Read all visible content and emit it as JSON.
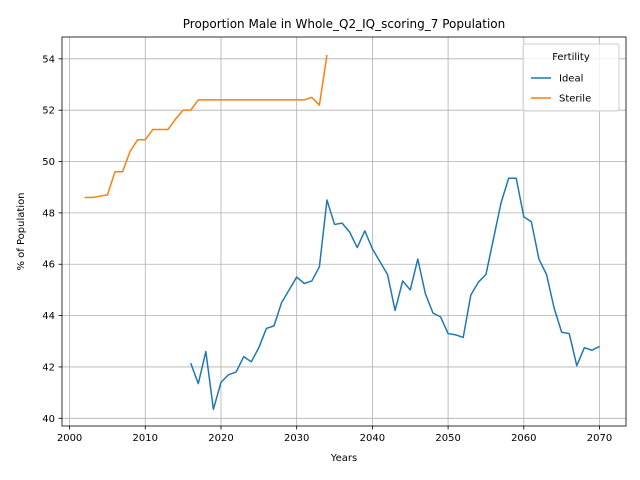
{
  "chart_data": {
    "type": "line",
    "title": "Proportion Male in Whole_Q2_IQ_scoring_7 Population",
    "xlabel": "Years",
    "ylabel": "% of Population",
    "xlim": [
      1999,
      2073.5
    ],
    "ylim": [
      39.7,
      54.85
    ],
    "xticks": [
      2000,
      2010,
      2020,
      2030,
      2040,
      2050,
      2060,
      2070
    ],
    "yticks": [
      40,
      42,
      44,
      46,
      48,
      50,
      52,
      54
    ],
    "grid": true,
    "legend": {
      "title": "Fertility",
      "placement": "top-right"
    },
    "series": [
      {
        "name": "Ideal",
        "color": "#1f77b4",
        "x": [
          2016,
          2017,
          2018,
          2019,
          2020,
          2021,
          2022,
          2023,
          2024,
          2025,
          2026,
          2027,
          2028,
          2029,
          2030,
          2031,
          2032,
          2033,
          2034,
          2035,
          2036,
          2037,
          2038,
          2039,
          2040,
          2041,
          2042,
          2043,
          2044,
          2045,
          2046,
          2047,
          2048,
          2049,
          2050,
          2051,
          2052,
          2053,
          2054,
          2055,
          2056,
          2057,
          2058,
          2059,
          2060,
          2061,
          2062,
          2063,
          2064,
          2065,
          2066,
          2067,
          2068,
          2069,
          2070
        ],
        "y": [
          42.15,
          41.35,
          42.6,
          40.35,
          41.4,
          41.7,
          41.8,
          42.4,
          42.2,
          42.75,
          43.5,
          43.6,
          44.5,
          45.0,
          45.5,
          45.25,
          45.35,
          45.9,
          48.5,
          47.55,
          47.6,
          47.25,
          46.65,
          47.3,
          46.6,
          46.1,
          45.6,
          44.2,
          45.35,
          45.0,
          46.2,
          44.85,
          44.1,
          43.95,
          43.3,
          43.25,
          43.15,
          44.8,
          45.3,
          45.6,
          47.0,
          48.4,
          49.35,
          49.35,
          47.85,
          47.65,
          46.2,
          45.6,
          44.3,
          43.35,
          43.3,
          42.05,
          42.75,
          42.65,
          42.8
        ]
      },
      {
        "name": "Sterile",
        "color": "#ff7f0e",
        "x": [
          2002,
          2003,
          2004,
          2005,
          2006,
          2007,
          2008,
          2009,
          2010,
          2011,
          2012,
          2013,
          2014,
          2015,
          2016,
          2017,
          2018,
          2019,
          2020,
          2021,
          2022,
          2023,
          2024,
          2025,
          2026,
          2027,
          2028,
          2029,
          2030,
          2031,
          2032,
          2033,
          2034
        ],
        "y": [
          48.6,
          48.6,
          48.65,
          48.7,
          49.6,
          49.6,
          50.4,
          50.85,
          50.85,
          51.25,
          51.25,
          51.25,
          51.65,
          52.0,
          52.0,
          52.4,
          52.4,
          52.4,
          52.4,
          52.4,
          52.4,
          52.4,
          52.4,
          52.4,
          52.4,
          52.4,
          52.4,
          52.4,
          52.4,
          52.4,
          52.5,
          52.2,
          54.15
        ]
      }
    ]
  }
}
